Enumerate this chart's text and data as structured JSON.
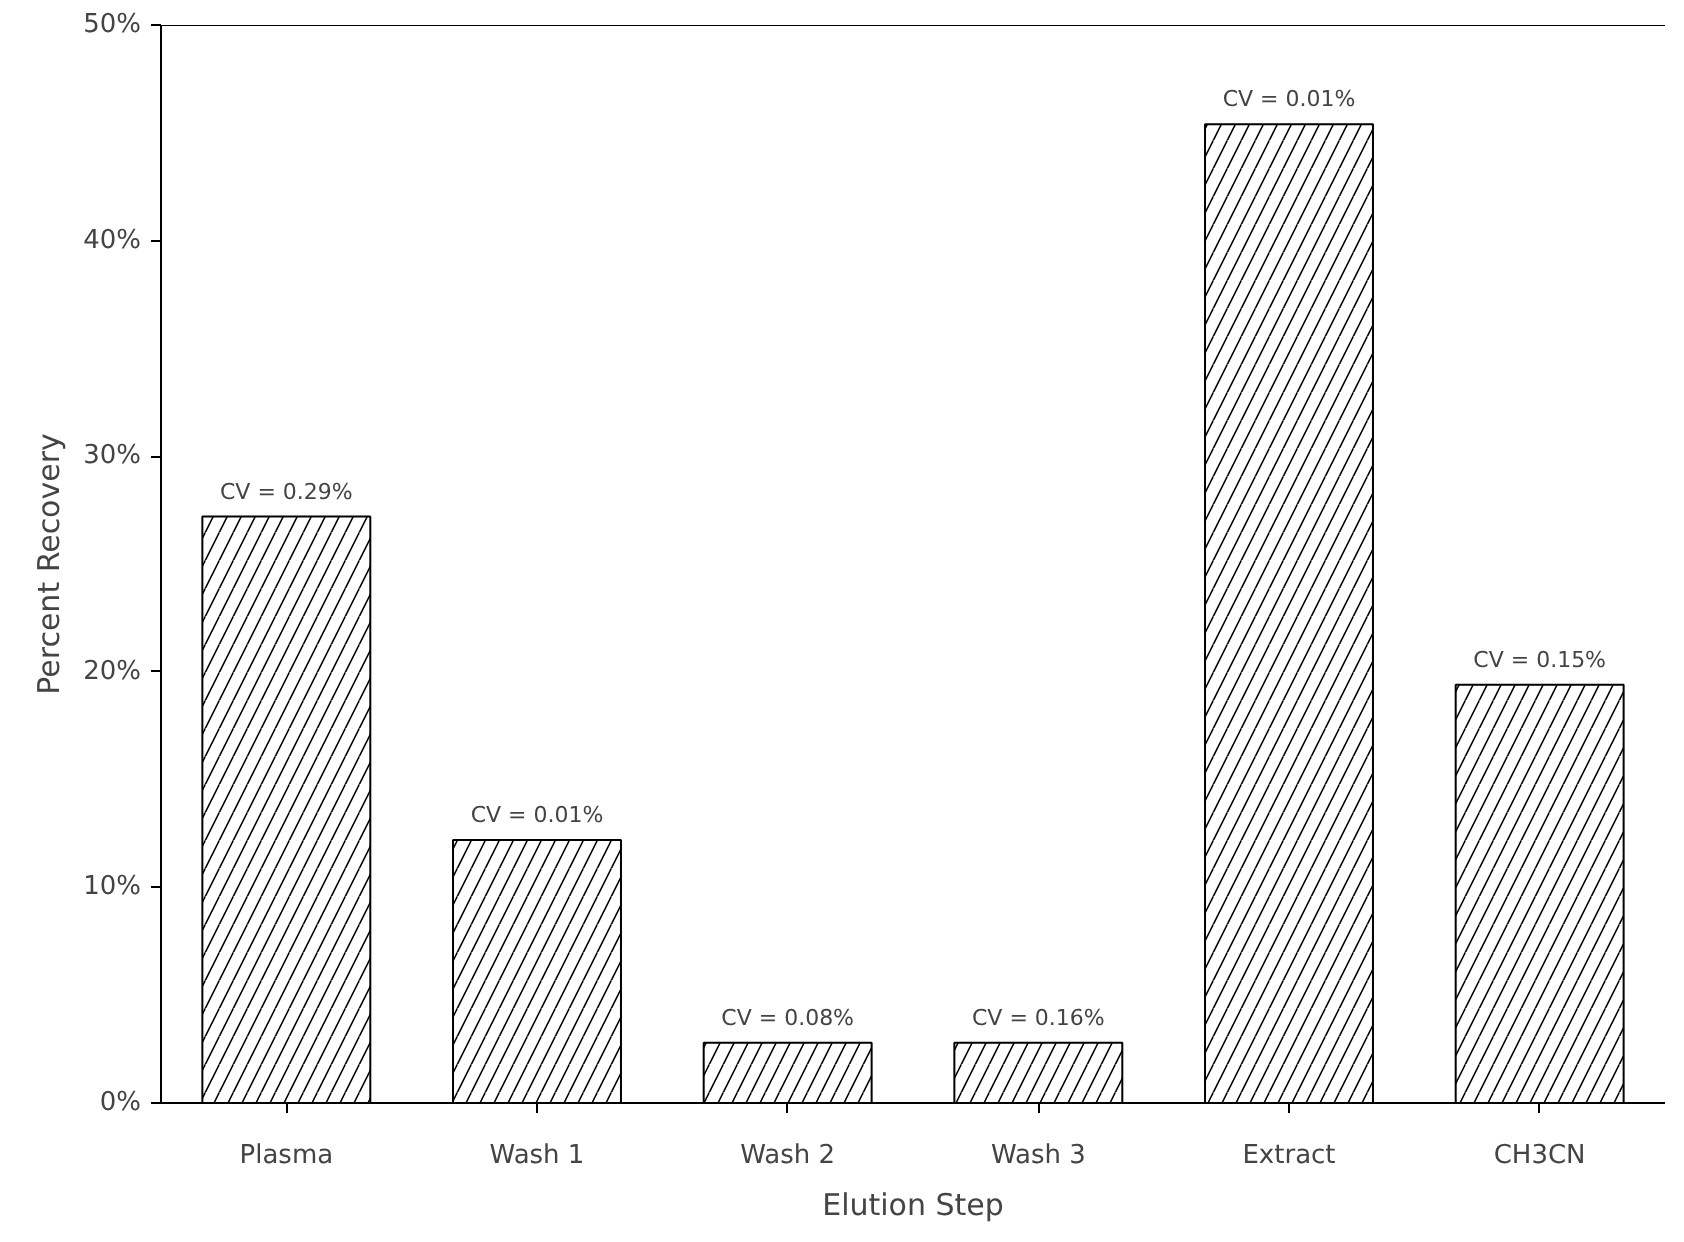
{
  "chart_data": {
    "type": "bar",
    "xlabel": "Elution Step",
    "ylabel": "Percent Recovery",
    "categories": [
      "Plasma",
      "Wash 1",
      "Wash 2",
      "Wash 3",
      "Extract",
      "CH3CN"
    ],
    "values": [
      27.2,
      12.2,
      2.8,
      2.8,
      45.4,
      19.4
    ],
    "color": "#000000",
    "ylim": [
      0,
      50
    ],
    "yticks": [
      {
        "value": 0,
        "label": "0%"
      },
      {
        "value": 10,
        "label": "10%"
      },
      {
        "value": 20,
        "label": "20%"
      },
      {
        "value": 30,
        "label": "30%"
      },
      {
        "value": 40,
        "label": "40%"
      },
      {
        "value": 50,
        "label": "50%"
      }
    ],
    "grid": false,
    "annotations": [
      {
        "text": "CV = 0.29%",
        "x": "Plasma",
        "y": 27.2
      },
      {
        "text": "CV = 0.01%",
        "x": "Wash 1",
        "y": 12.2
      },
      {
        "text": "CV = 0.08%",
        "x": "Wash 2",
        "y": 2.8
      },
      {
        "text": "CV = 0.16%",
        "x": "Wash 3",
        "y": 2.8
      },
      {
        "text": "CV = 0.01%",
        "x": "Extract",
        "y": 45.4
      },
      {
        "text": "CV = 0.15%",
        "x": "CH3CN",
        "y": 19.4
      }
    ]
  }
}
